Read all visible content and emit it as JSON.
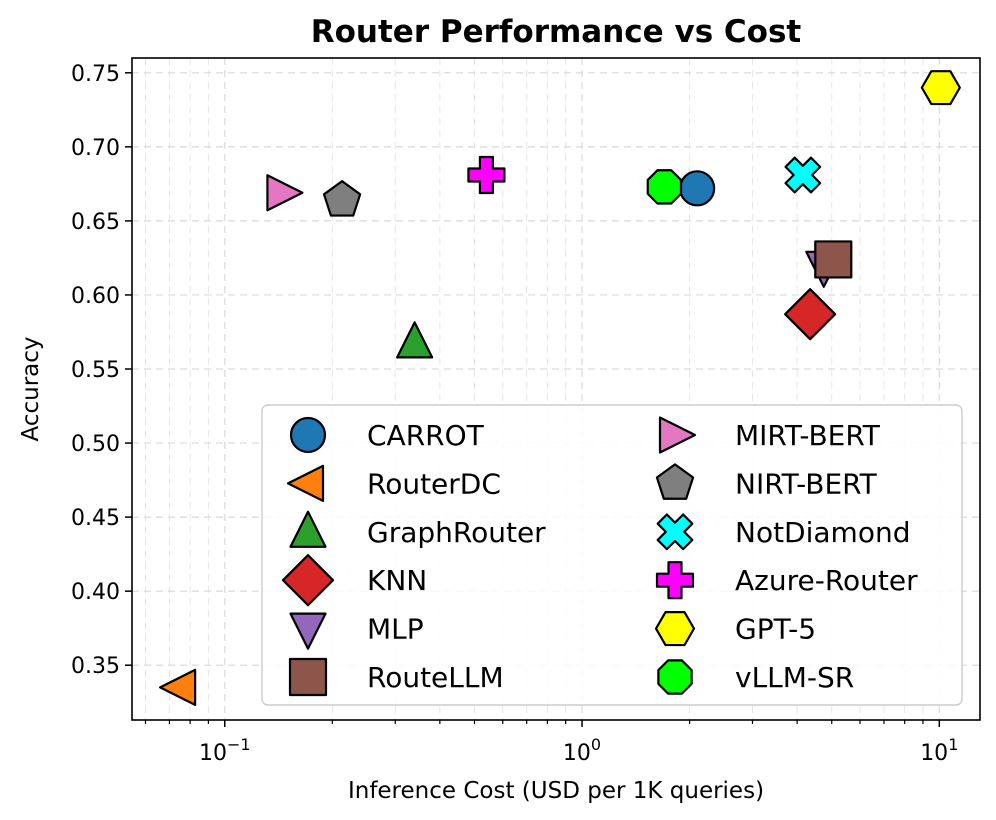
{
  "chart_data": {
    "type": "scatter",
    "title": "Router Performance vs Cost",
    "xlabel": "Inference Cost (USD per 1K queries)",
    "ylabel": "Accuracy",
    "xscale": "log",
    "xlim": [
      0.055,
      13.0
    ],
    "ylim": [
      0.313,
      0.76
    ],
    "grid": true,
    "legend_position": "lower-right",
    "legend_columns": 2,
    "y_ticks": [
      {
        "value": 0.35,
        "label": "0.35"
      },
      {
        "value": 0.4,
        "label": "0.40"
      },
      {
        "value": 0.45,
        "label": "0.45"
      },
      {
        "value": 0.5,
        "label": "0.50"
      },
      {
        "value": 0.55,
        "label": "0.55"
      },
      {
        "value": 0.6,
        "label": "0.60"
      },
      {
        "value": 0.65,
        "label": "0.65"
      },
      {
        "value": 0.7,
        "label": "0.70"
      },
      {
        "value": 0.75,
        "label": "0.75"
      }
    ],
    "x_ticks": [
      {
        "value": 0.1,
        "base": "10",
        "exp": "−1"
      },
      {
        "value": 1,
        "base": "10",
        "exp": "0"
      },
      {
        "value": 10,
        "base": "10",
        "exp": "1"
      }
    ],
    "series": [
      {
        "name": "CARROT",
        "marker": "circle",
        "color": "#1f77b4",
        "x": 2.1,
        "y": 0.672
      },
      {
        "name": "RouterDC",
        "marker": "triangle-left",
        "color": "#ff7f0e",
        "x": 0.075,
        "y": 0.335
      },
      {
        "name": "GraphRouter",
        "marker": "triangle-up",
        "color": "#2ca02c",
        "x": 0.34,
        "y": 0.568
      },
      {
        "name": "KNN",
        "marker": "diamond",
        "color": "#d62728",
        "x": 4.35,
        "y": 0.587
      },
      {
        "name": "MLP",
        "marker": "triangle-down",
        "color": "#9467bd",
        "x": 4.75,
        "y": 0.619
      },
      {
        "name": "RouteLLM",
        "marker": "square",
        "color": "#8c564b",
        "x": 5.05,
        "y": 0.624
      },
      {
        "name": "MIRT-BERT",
        "marker": "triangle-right",
        "color": "#e377c2",
        "x": 0.145,
        "y": 0.669
      },
      {
        "name": "NIRT-BERT",
        "marker": "pentagon",
        "color": "#7f7f7f",
        "x": 0.213,
        "y": 0.664
      },
      {
        "name": "NotDiamond",
        "marker": "x-thick",
        "color": "#00ffff",
        "x": 4.15,
        "y": 0.681
      },
      {
        "name": "Azure-Router",
        "marker": "plus-thick",
        "color": "#ff00ff",
        "x": 0.54,
        "y": 0.681
      },
      {
        "name": "GPT-5",
        "marker": "hexagon",
        "color": "#ffff00",
        "x": 10.1,
        "y": 0.74
      },
      {
        "name": "vLLM-SR",
        "marker": "octagon",
        "color": "#00ff00",
        "x": 1.7,
        "y": 0.673
      }
    ]
  }
}
